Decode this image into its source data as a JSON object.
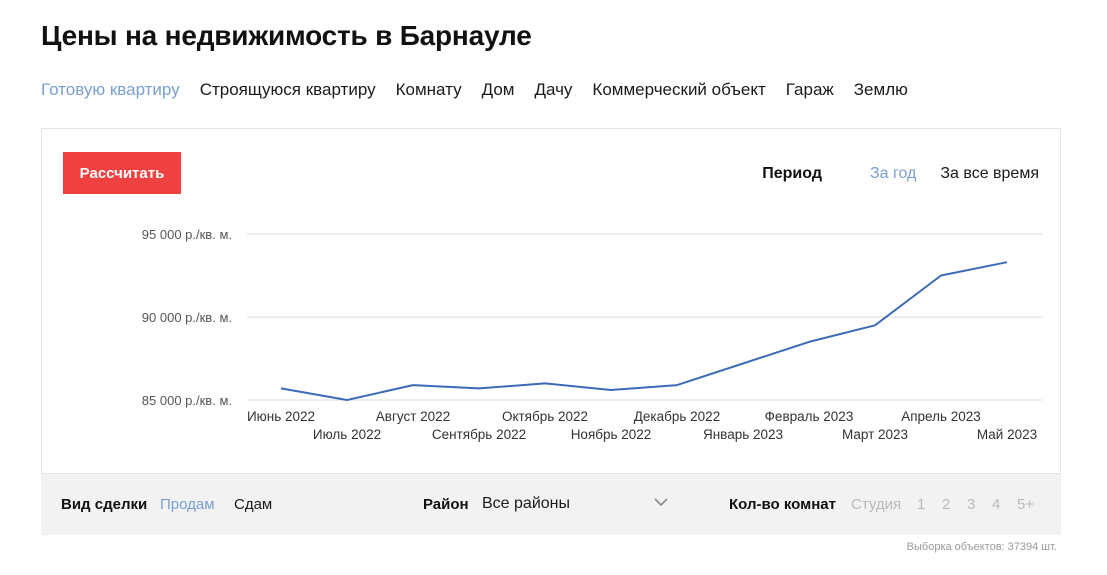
{
  "page": {
    "title": "Цены на недвижимость в Барнауле"
  },
  "property_types": [
    {
      "label": "Готовую квартиру",
      "active": true
    },
    {
      "label": "Строящуюся квартиру",
      "active": false
    },
    {
      "label": "Комнату",
      "active": false
    },
    {
      "label": "Дом",
      "active": false
    },
    {
      "label": "Дачу",
      "active": false
    },
    {
      "label": "Коммерческий объект",
      "active": false
    },
    {
      "label": "Гараж",
      "active": false
    },
    {
      "label": "Землю",
      "active": false
    }
  ],
  "toolbar": {
    "calculate_label": "Рассчитать"
  },
  "period": {
    "label": "Период",
    "options": [
      {
        "label": "За год",
        "active": true
      },
      {
        "label": "За все время",
        "active": false
      }
    ]
  },
  "colors": {
    "accent": "#7a9fd4",
    "button": "#f04141",
    "line": "#3d6bb8",
    "grid": "#dddddd"
  },
  "chart_data": {
    "type": "line",
    "title": "",
    "xlabel": "",
    "ylabel": "",
    "ylim": [
      85000,
      95000
    ],
    "yticks": [
      {
        "value": 95000,
        "label": "95 000 р./кв. м."
      },
      {
        "value": 90000,
        "label": "90 000 р./кв. м."
      },
      {
        "value": 85000,
        "label": "85 000 р./кв. м."
      }
    ],
    "grid": true,
    "categories": [
      "Июнь 2022",
      "Июль 2022",
      "Август 2022",
      "Сентябрь 2022",
      "Октябрь 2022",
      "Ноябрь 2022",
      "Декабрь 2022",
      "Январь 2023",
      "Февраль 2023",
      "Март 2023",
      "Апрель 2023",
      "Май 2023"
    ],
    "series": [
      {
        "values": [
          85700,
          85000,
          85900,
          85700,
          86000,
          85600,
          85900,
          87200,
          88500,
          89500,
          92500,
          93300
        ]
      }
    ]
  },
  "filters": {
    "deal_label": "Вид сделки",
    "deal_options": [
      {
        "label": "Продам",
        "active": true
      },
      {
        "label": "Сдам",
        "active": false
      }
    ],
    "district_label": "Район",
    "district_value": "Все районы",
    "rooms_label": "Кол-во комнат",
    "rooms_options": [
      "Студия",
      "1",
      "2",
      "3",
      "4",
      "5+"
    ]
  },
  "footer": {
    "sample_count": "Выборка объектов: 37394 шт."
  }
}
